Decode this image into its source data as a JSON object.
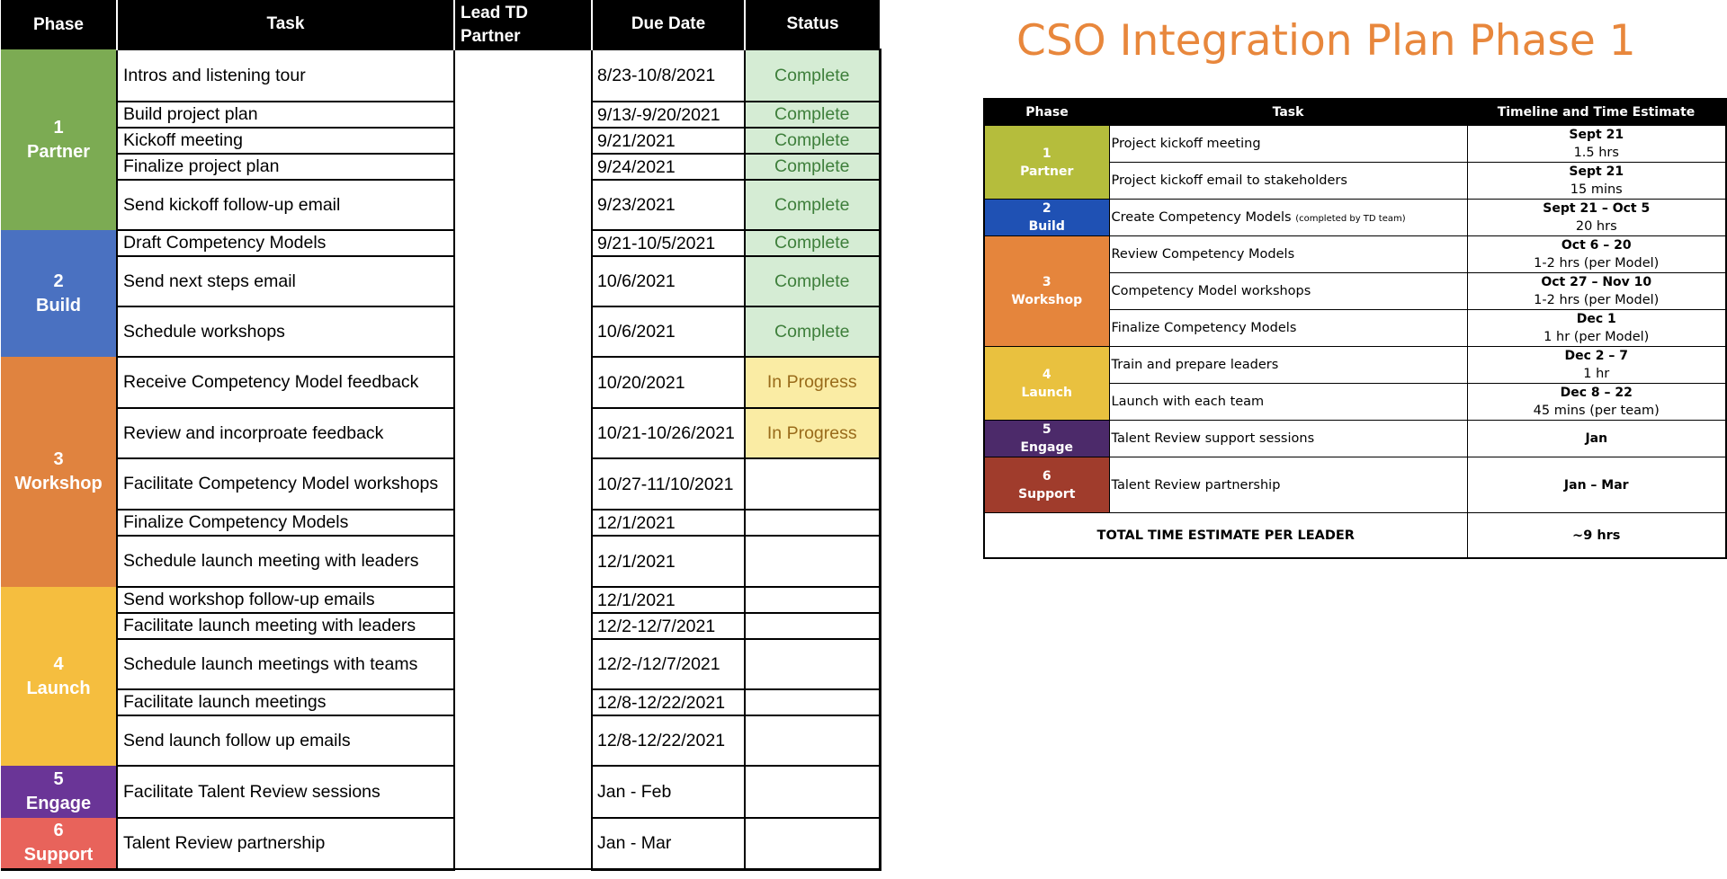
{
  "tracker": {
    "headers": {
      "phase": "Phase",
      "task": "Task",
      "lead": "Lead TD Partner",
      "due": "Due Date",
      "status": "Status"
    },
    "phases": [
      {
        "num": "1",
        "name": "Partner",
        "color": "#7cab53"
      },
      {
        "num": "2",
        "name": "Build",
        "color": "#4a71c1"
      },
      {
        "num": "3",
        "name": "Workshop",
        "color": "#e0833f"
      },
      {
        "num": "4",
        "name": "Launch",
        "color": "#f5be3f"
      },
      {
        "num": "5",
        "name": "Engage",
        "color": "#6a3597"
      },
      {
        "num": "6",
        "name": "Support",
        "color": "#e8635b"
      }
    ],
    "rows": [
      {
        "task": "Intros and listening tour",
        "due": "8/23-10/8/2021",
        "status": "Complete"
      },
      {
        "task": "Build project plan",
        "due": "9/13/-9/20/2021",
        "status": "Complete"
      },
      {
        "task": "Kickoff meeting",
        "due": "9/21/2021",
        "status": "Complete"
      },
      {
        "task": "Finalize project plan",
        "due": "9/24/2021",
        "status": "Complete"
      },
      {
        "task": "Send kickoff follow-up email",
        "due": "9/23/2021",
        "status": "Complete"
      },
      {
        "task": "Draft Competency Models",
        "due": "9/21-10/5/2021",
        "status": "Complete"
      },
      {
        "task": "Send next steps email",
        "due": "10/6/2021",
        "status": "Complete"
      },
      {
        "task": "Schedule workshops",
        "due": "10/6/2021",
        "status": "Complete"
      },
      {
        "task": "Receive Competency Model feedback",
        "due": "10/20/2021",
        "status": "In Progress"
      },
      {
        "task": "Review and incorproate feedback",
        "due": "10/21-10/26/2021",
        "status": "In Progress"
      },
      {
        "task": "Facilitate Competency Model workshops",
        "due": "10/27-11/10/2021",
        "status": ""
      },
      {
        "task": "Finalize Competency Models",
        "due": "12/1/2021",
        "status": ""
      },
      {
        "task": "Schedule launch meeting with leaders",
        "due": "12/1/2021",
        "status": ""
      },
      {
        "task": "Send workshop follow-up emails",
        "due": "12/1/2021",
        "status": ""
      },
      {
        "task": "Facilitate launch meeting with leaders",
        "due": "12/2-12/7/2021",
        "status": ""
      },
      {
        "task": "Schedule launch meetings with teams",
        "due": "12/2-/12/7/2021",
        "status": ""
      },
      {
        "task": "Facilitate launch meetings",
        "due": "12/8-12/22/2021",
        "status": ""
      },
      {
        "task": "Send launch follow up emails",
        "due": "12/8-12/22/2021",
        "status": ""
      },
      {
        "task": "Facilitate Talent Review sessions",
        "due": "Jan - Feb",
        "status": ""
      },
      {
        "task": "Talent Review partnership",
        "due": "Jan - Mar",
        "status": ""
      }
    ]
  },
  "plan": {
    "title": "CSO Integration Plan Phase 1",
    "headers": {
      "phase": "Phase",
      "task": "Task",
      "time": "Timeline and Time Estimate"
    },
    "phases": [
      {
        "num": "1",
        "name": "Partner",
        "color": "#b5bd3c"
      },
      {
        "num": "2",
        "name": "Build",
        "color": "#1f51b4"
      },
      {
        "num": "3",
        "name": "Workshop",
        "color": "#e5853c"
      },
      {
        "num": "4",
        "name": "Launch",
        "color": "#e9c13f"
      },
      {
        "num": "5",
        "name": "Engage",
        "color": "#4c2a6a"
      },
      {
        "num": "6",
        "name": "Support",
        "color": "#a03c2c"
      }
    ],
    "rows": [
      {
        "task": "Project kickoff meeting",
        "note": "",
        "date": "Sept 21",
        "estimate": "1.5 hrs"
      },
      {
        "task": "Project kickoff email to stakeholders",
        "note": "",
        "date": "Sept 21",
        "estimate": "15 mins"
      },
      {
        "task": "Create Competency Models",
        "note": "(completed by TD team)",
        "date": "Sept 21 – Oct 5",
        "estimate": "20 hrs"
      },
      {
        "task": "Review Competency Models",
        "note": "",
        "date": "Oct 6 – 20",
        "estimate": "1-2 hrs (per Model)"
      },
      {
        "task": "Competency Model workshops",
        "note": "",
        "date": "Oct 27 – Nov 10",
        "estimate": "1-2 hrs (per Model)"
      },
      {
        "task": "Finalize Competency Models",
        "note": "",
        "date": "Dec 1",
        "estimate": "1 hr (per Model)"
      },
      {
        "task": "Train and prepare leaders",
        "note": "",
        "date": "Dec 2 – 7",
        "estimate": "1 hr"
      },
      {
        "task": "Launch with each team",
        "note": "",
        "date": "Dec 8 – 22",
        "estimate": "45 mins (per team)"
      },
      {
        "task": "Talent Review support sessions",
        "note": "",
        "date": "Jan",
        "estimate": ""
      },
      {
        "task": "Talent Review partnership",
        "note": "",
        "date": "Jan – Mar",
        "estimate": ""
      }
    ],
    "total_label": "TOTAL TIME ESTIMATE PER LEADER",
    "total_value": "~9 hrs"
  }
}
